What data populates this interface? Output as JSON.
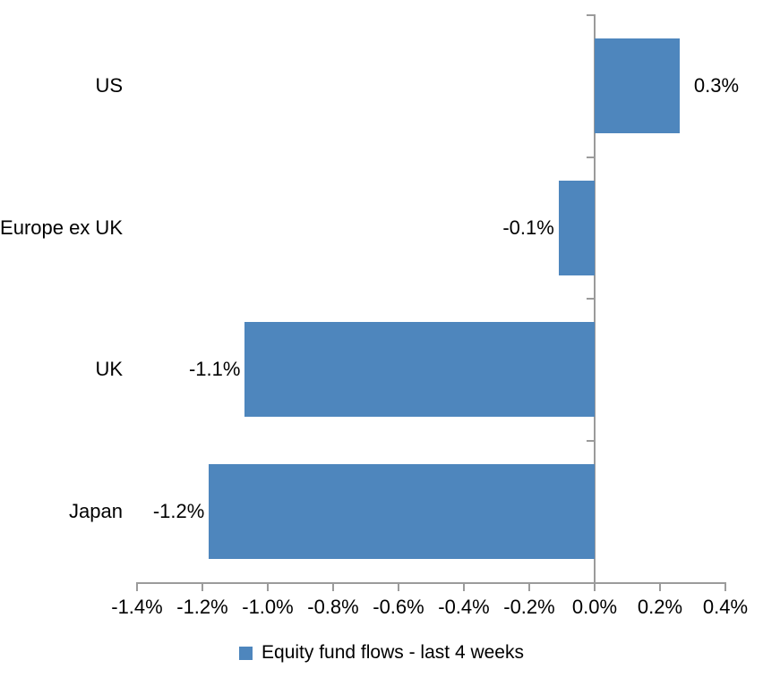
{
  "chart_data": {
    "type": "bar",
    "orientation": "horizontal",
    "title": "",
    "categories": [
      "US",
      "Europe ex UK",
      "UK",
      "Japan"
    ],
    "values": [
      0.26,
      -0.11,
      -1.07,
      -1.18
    ],
    "labels": [
      "0.3%",
      "-0.1%",
      "-1.1%",
      "-1.2%"
    ],
    "value_unit": "%",
    "xlim": [
      -1.4,
      0.4
    ],
    "xticks": [
      -1.4,
      -1.2,
      -1.0,
      -0.8,
      -0.6,
      -0.4,
      -0.2,
      0.0,
      0.2,
      0.4
    ],
    "xtick_labels": [
      "-1.4%",
      "-1.2%",
      "-1.0%",
      "-0.8%",
      "-0.6%",
      "-0.4%",
      "-0.2%",
      "0.0%",
      "0.2%",
      "0.4%"
    ],
    "grid": false,
    "legend": [
      "Equity fund flows - last 4 weeks"
    ],
    "legend_position": "bottom",
    "colors": {
      "bar": "#4e86bd",
      "axis": "#9b9b9b",
      "text": "#000000",
      "background": "#ffffff"
    }
  }
}
